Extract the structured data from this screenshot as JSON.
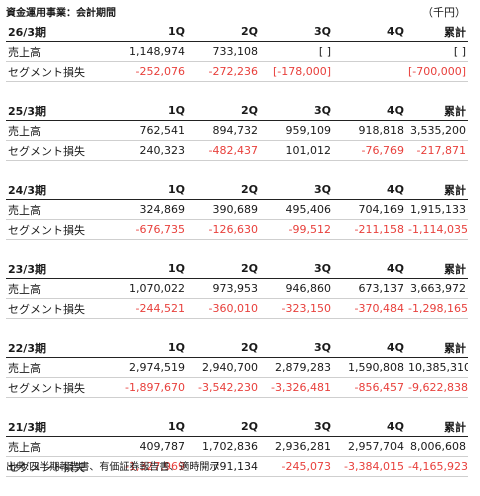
{
  "title": "資金運用事業：会計期間",
  "unit": "（千円）",
  "columns": [
    "1Q",
    "2Q",
    "3Q",
    "4Q",
    "累計"
  ],
  "row_labels": [
    "売上高",
    "セグメント損失"
  ],
  "negative_color": "#e8403c",
  "periods": [
    {
      "label": "26/3期",
      "sales": [
        "1,148,974",
        "733,108",
        "[ ]",
        "",
        "[ ]"
      ],
      "loss": [
        "-252,076",
        "-272,236",
        "[-178,000]",
        "",
        "[-700,000]"
      ]
    },
    {
      "label": "25/3期",
      "sales": [
        "762,541",
        "894,732",
        "959,109",
        "918,818",
        "3,535,200"
      ],
      "loss": [
        "240,323",
        "-482,437",
        "101,012",
        "-76,769",
        "-217,871"
      ]
    },
    {
      "label": "24/3期",
      "sales": [
        "324,869",
        "390,689",
        "495,406",
        "704,169",
        "1,915,133"
      ],
      "loss": [
        "-676,735",
        "-126,630",
        "-99,512",
        "-211,158",
        "-1,114,035"
      ]
    },
    {
      "label": "23/3期",
      "sales": [
        "1,070,022",
        "973,953",
        "946,860",
        "673,137",
        "3,663,972"
      ],
      "loss": [
        "-244,521",
        "-360,010",
        "-323,150",
        "-370,484",
        "-1,298,165"
      ]
    },
    {
      "label": "22/3期",
      "sales": [
        "2,974,519",
        "2,940,700",
        "2,879,283",
        "1,590,808",
        "10,385,310"
      ],
      "loss": [
        "-1,897,670",
        "-3,542,230",
        "-3,326,481",
        "-856,457",
        "-9,622,838"
      ]
    },
    {
      "label": "21/3期",
      "sales": [
        "409,787",
        "1,702,836",
        "2,936,281",
        "2,957,704",
        "8,006,608"
      ],
      "loss": [
        "-1,327,969",
        "791,134",
        "-245,073",
        "-3,384,015",
        "-4,165,923"
      ]
    }
  ],
  "source": "出典:四半期報告書、有価証券報告書、適時開示"
}
